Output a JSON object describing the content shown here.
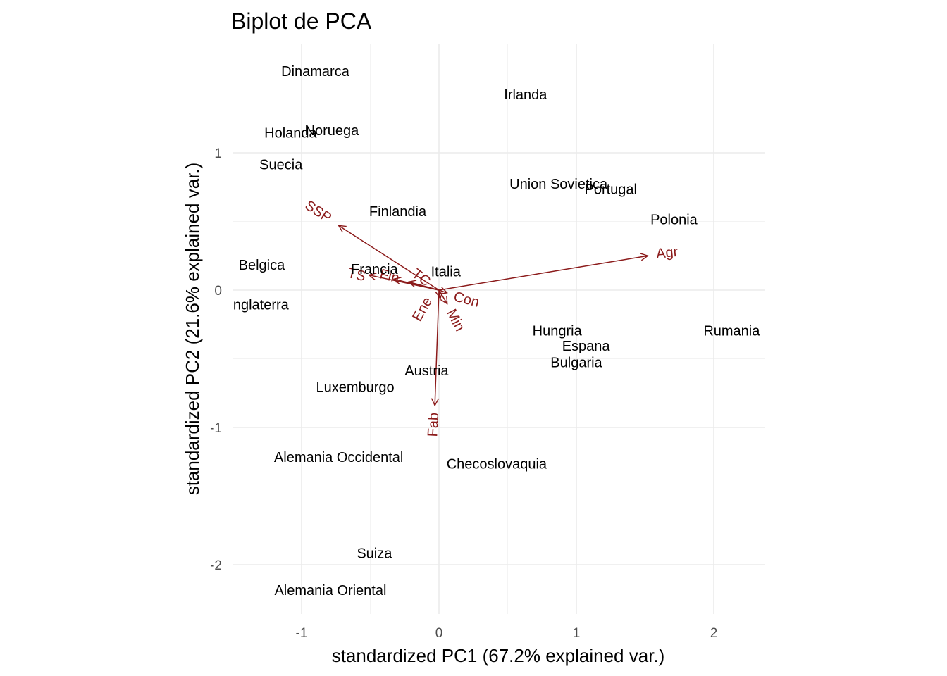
{
  "chart_data": {
    "type": "scatter",
    "title": "Biplot de PCA",
    "xlabel": "standardized PC1 (67.2% explained var.)",
    "ylabel": "standardized PC2 (21.6% explained var.)",
    "xlim": [
      -1.5,
      2.37
    ],
    "ylim": [
      -2.35,
      1.8
    ],
    "xticks": [
      -1,
      0,
      1,
      2
    ],
    "yticks": [
      -2,
      -1,
      0,
      1
    ],
    "grid": true,
    "arrow_color": "#8B1A1A",
    "points": [
      {
        "label": "Dinamarca",
        "x": -0.9,
        "y": 1.59
      },
      {
        "label": "Irlanda",
        "x": 0.63,
        "y": 1.42
      },
      {
        "label": "Holanda",
        "x": -1.08,
        "y": 1.14
      },
      {
        "label": "Noruega",
        "x": -0.78,
        "y": 1.16
      },
      {
        "label": "Suecia",
        "x": -1.15,
        "y": 0.91
      },
      {
        "label": "Union Sovietica",
        "x": 0.87,
        "y": 0.77
      },
      {
        "label": "Portugal",
        "x": 1.25,
        "y": 0.73
      },
      {
        "label": "Finlandia",
        "x": -0.3,
        "y": 0.57
      },
      {
        "label": "Polonia",
        "x": 1.71,
        "y": 0.51
      },
      {
        "label": "Belgica",
        "x": -1.29,
        "y": 0.18
      },
      {
        "label": "Francia",
        "x": -0.47,
        "y": 0.15
      },
      {
        "label": "Italia",
        "x": 0.05,
        "y": 0.13
      },
      {
        "label": "Inglaterra",
        "x": -1.31,
        "y": -0.11
      },
      {
        "label": "Hungria",
        "x": 0.86,
        "y": -0.3
      },
      {
        "label": "Rumania",
        "x": 2.13,
        "y": -0.3
      },
      {
        "label": "Espana",
        "x": 1.07,
        "y": -0.41
      },
      {
        "label": "Bulgaria",
        "x": 1.0,
        "y": -0.53
      },
      {
        "label": "Austria",
        "x": -0.09,
        "y": -0.59
      },
      {
        "label": "Luxemburgo",
        "x": -0.61,
        "y": -0.71
      },
      {
        "label": "Alemania Occidental",
        "x": -0.73,
        "y": -1.22
      },
      {
        "label": "Checoslovaquia",
        "x": 0.42,
        "y": -1.27
      },
      {
        "label": "Suiza",
        "x": -0.47,
        "y": -1.92
      },
      {
        "label": "Alemania Oriental",
        "x": -0.79,
        "y": -2.19
      }
    ],
    "variables": [
      {
        "label": "Agr",
        "x": 1.52,
        "y": 0.25,
        "lx": 1.66,
        "ly": 0.27,
        "angle": -6
      },
      {
        "label": "SSP",
        "x": -0.73,
        "y": 0.47,
        "lx": -0.88,
        "ly": 0.57,
        "angle": 33
      },
      {
        "label": "TS",
        "x": -0.51,
        "y": 0.11,
        "lx": -0.6,
        "ly": 0.11,
        "angle": 13
      },
      {
        "label": "Fin",
        "x": -0.33,
        "y": 0.08,
        "lx": -0.36,
        "ly": 0.1,
        "angle": 15
      },
      {
        "label": "TC",
        "x": -0.22,
        "y": 0.06,
        "lx": -0.13,
        "ly": 0.09,
        "angle": 37
      },
      {
        "label": "Con",
        "x": 0.06,
        "y": -0.02,
        "lx": 0.2,
        "ly": -0.07,
        "angle": 14
      },
      {
        "label": "Ene",
        "x": 0.01,
        "y": -0.06,
        "lx": -0.12,
        "ly": -0.14,
        "angle": -60
      },
      {
        "label": "Min",
        "x": 0.06,
        "y": -0.1,
        "lx": 0.12,
        "ly": -0.22,
        "angle": 63
      },
      {
        "label": "Fab",
        "x": -0.03,
        "y": -0.84,
        "lx": -0.04,
        "ly": -0.98,
        "angle": -87
      }
    ]
  }
}
